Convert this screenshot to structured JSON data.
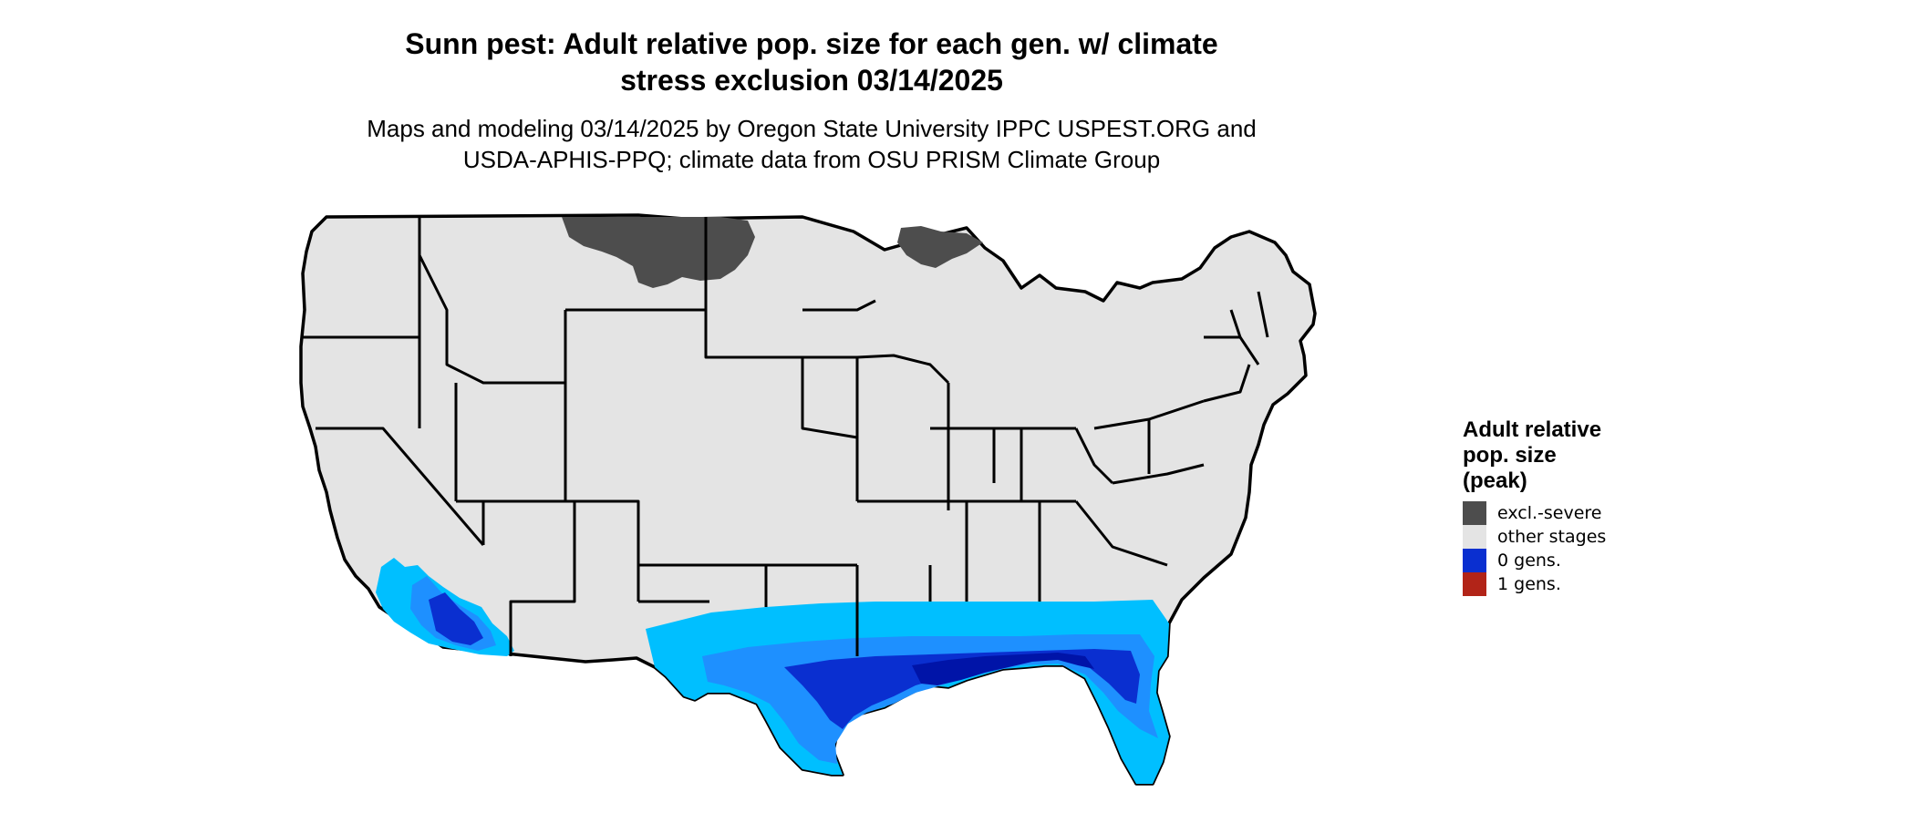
{
  "title": {
    "line1": "Sunn pest: Adult relative pop. size for each gen. w/ climate",
    "line2": "stress exclusion 03/14/2025"
  },
  "subtitle": {
    "line1": "Maps and modeling 03/14/2025 by Oregon State University IPPC USPEST.ORG and",
    "line2": "USDA-APHIS-PPQ; climate data from OSU PRISM Climate Group"
  },
  "map": {
    "region": "conterminous United States",
    "colors": {
      "land": "#e4e4e4",
      "border": "#000000",
      "zone_light": "#00bfff",
      "zone_mid": "#1e90ff",
      "zone_deep": "#0a2fd0",
      "zone_darkest": "#0014a8"
    }
  },
  "legend": {
    "title_line1": "Adult relative",
    "title_line2": "pop. size",
    "title_line3": "(peak)",
    "items": [
      {
        "label": "excl.-severe",
        "color": "#4d4d4d"
      },
      {
        "label": "other stages",
        "color": "#e4e4e4"
      },
      {
        "label": "0 gens.",
        "color": "#0a2fd0"
      },
      {
        "label": "1 gens.",
        "color": "#b22418"
      }
    ]
  }
}
